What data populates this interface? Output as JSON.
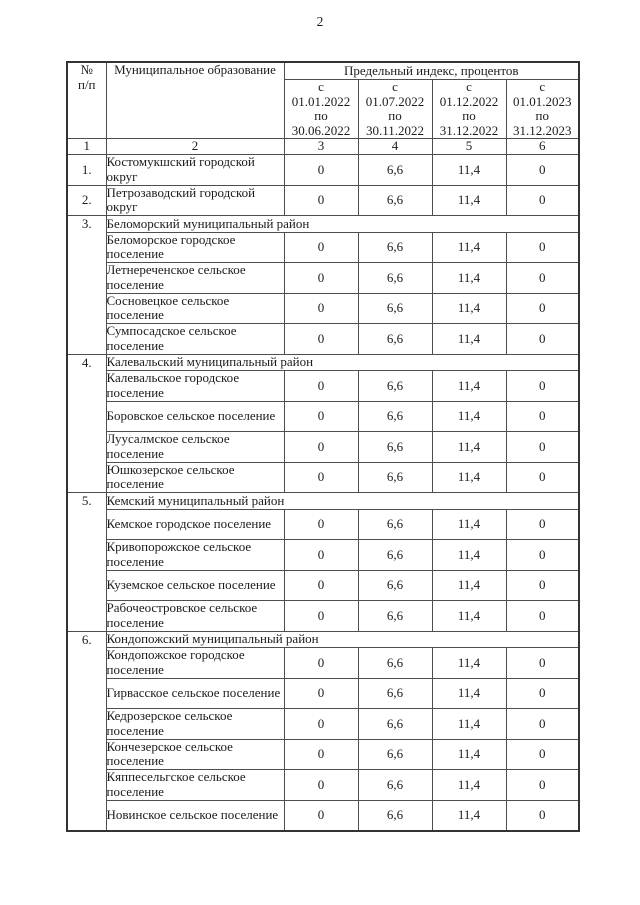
{
  "page": {
    "number": "2"
  },
  "table": {
    "headers": {
      "num": "№\nп/п",
      "municipality": "Муниципальное образование",
      "index_caption": "Предельный индекс, процентов",
      "periods": [
        "с\n01.01.2022\nпо\n30.06.2022",
        "с\n01.07.2022\nпо\n30.11.2022",
        "с\n01.12.2022\nпо\n31.12.2022",
        "с\n01.01.2023\nпо\n31.12.2023"
      ],
      "column_numbers": [
        "1",
        "2",
        "3",
        "4",
        "5",
        "6"
      ]
    },
    "rows": [
      {
        "type": "entity",
        "num": "1.",
        "name": "Костомукшский городской округ",
        "values": [
          "0",
          "6,6",
          "11,4",
          "0"
        ]
      },
      {
        "type": "entity",
        "num": "2.",
        "name": "Петрозаводский городской округ",
        "values": [
          "0",
          "6,6",
          "11,4",
          "0"
        ]
      },
      {
        "type": "district",
        "num": "3.",
        "name": "Беломорский муниципальный район",
        "settlements": [
          {
            "name": "Беломорское городское поселение",
            "values": [
              "0",
              "6,6",
              "11,4",
              "0"
            ]
          },
          {
            "name": "Летнереченское сельское поселение",
            "values": [
              "0",
              "6,6",
              "11,4",
              "0"
            ]
          },
          {
            "name": "Сосновецкое сельское поселение",
            "values": [
              "0",
              "6,6",
              "11,4",
              "0"
            ]
          },
          {
            "name": "Сумпосадское сельское поселение",
            "values": [
              "0",
              "6,6",
              "11,4",
              "0"
            ]
          }
        ]
      },
      {
        "type": "district",
        "num": "4.",
        "name": "Калевальский муниципальный район",
        "settlements": [
          {
            "name": "Калевальское городское поселение",
            "values": [
              "0",
              "6,6",
              "11,4",
              "0"
            ]
          },
          {
            "name": "Боровское сельское поселение",
            "values": [
              "0",
              "6,6",
              "11,4",
              "0"
            ]
          },
          {
            "name": "Луусалмское сельское поселение",
            "values": [
              "0",
              "6,6",
              "11,4",
              "0"
            ]
          },
          {
            "name": "Юшкозерское сельское поселение",
            "values": [
              "0",
              "6,6",
              "11,4",
              "0"
            ]
          }
        ]
      },
      {
        "type": "district",
        "num": "5.",
        "name": "Кемский муниципальный район",
        "settlements": [
          {
            "name": "Кемское городское поселение",
            "values": [
              "0",
              "6,6",
              "11,4",
              "0"
            ]
          },
          {
            "name": "Кривопорожское сельское поселение",
            "values": [
              "0",
              "6,6",
              "11,4",
              "0"
            ]
          },
          {
            "name": "Куземское сельское поселение",
            "values": [
              "0",
              "6,6",
              "11,4",
              "0"
            ]
          },
          {
            "name": "Рабочеостровское сельское поселение",
            "values": [
              "0",
              "6,6",
              "11,4",
              "0"
            ]
          }
        ]
      },
      {
        "type": "district",
        "num": "6.",
        "name": "Кондопожский муниципальный район",
        "settlements": [
          {
            "name": "Кондопожское городское поселение",
            "values": [
              "0",
              "6,6",
              "11,4",
              "0"
            ]
          },
          {
            "name": "Гирвасское сельское поселение",
            "values": [
              "0",
              "6,6",
              "11,4",
              "0"
            ]
          },
          {
            "name": "Кедрозерское сельское поселение",
            "values": [
              "0",
              "6,6",
              "11,4",
              "0"
            ]
          },
          {
            "name": "Кончезерское сельское поселение",
            "values": [
              "0",
              "6,6",
              "11,4",
              "0"
            ]
          },
          {
            "name": "Кяппесельгское сельское поселение",
            "values": [
              "0",
              "6,6",
              "11,4",
              "0"
            ]
          },
          {
            "name": "Новинское сельское поселение",
            "values": [
              "0",
              "6,6",
              "11,4",
              "0"
            ]
          }
        ]
      }
    ]
  }
}
